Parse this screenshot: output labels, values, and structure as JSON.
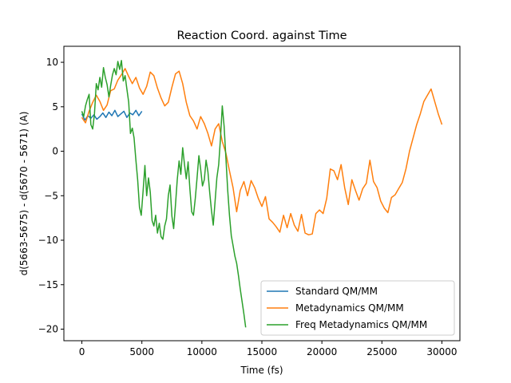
{
  "chart_data": {
    "type": "line",
    "title": "Reaction Coord. against Time",
    "xlabel": "Time (fs)",
    "ylabel": "d(5663-5675) - d(5670 - 5671) (A)",
    "xlim": [
      -1500,
      31500
    ],
    "ylim": [
      -21.3,
      11.8
    ],
    "xticks": [
      0,
      5000,
      10000,
      15000,
      20000,
      25000,
      30000
    ],
    "yticks": [
      -20,
      -15,
      -10,
      -5,
      0,
      5,
      10
    ],
    "grid": false,
    "legend": "lower-right",
    "series": [
      {
        "name": "Standard QM/MM",
        "color": "#1f77b4",
        "x": [
          0,
          250,
          500,
          750,
          1000,
          1250,
          1500,
          1750,
          2000,
          2250,
          2500,
          2750,
          3000,
          3250,
          3500,
          3750,
          4000,
          4250,
          4500,
          4750,
          5000
        ],
        "y": [
          4.2,
          3.5,
          4.0,
          3.7,
          4.1,
          3.6,
          3.9,
          4.3,
          3.8,
          4.4,
          4.0,
          4.6,
          3.9,
          4.2,
          4.5,
          3.8,
          4.3,
          4.1,
          4.6,
          4.0,
          4.5
        ]
      },
      {
        "name": "Metadynamics QM/MM",
        "color": "#ff7f0e",
        "x": [
          0,
          300,
          600,
          900,
          1200,
          1500,
          1800,
          2100,
          2400,
          2700,
          3000,
          3300,
          3600,
          3900,
          4200,
          4500,
          4800,
          5100,
          5400,
          5700,
          6000,
          6300,
          6600,
          6900,
          7200,
          7500,
          7800,
          8100,
          8400,
          8700,
          9000,
          9300,
          9600,
          9900,
          10200,
          10500,
          10800,
          11100,
          11400,
          11700,
          12000,
          12300,
          12600,
          12900,
          13200,
          13500,
          13800,
          14100,
          14400,
          14700,
          15000,
          15300,
          15600,
          15900,
          16200,
          16500,
          16800,
          17100,
          17400,
          17700,
          18000,
          18300,
          18600,
          18900,
          19200,
          19500,
          19800,
          20100,
          20400,
          20700,
          21000,
          21300,
          21600,
          21900,
          22200,
          22500,
          22800,
          23100,
          23400,
          23700,
          24000,
          24300,
          24600,
          24900,
          25200,
          25500,
          25800,
          26100,
          26400,
          26700,
          27000,
          27300,
          27600,
          27900,
          28200,
          28500,
          28800,
          29100,
          29400,
          29700,
          30000
        ],
        "y": [
          3.8,
          3.2,
          4.5,
          5.5,
          6.3,
          5.6,
          4.6,
          5.2,
          6.8,
          7.0,
          8.0,
          8.6,
          9.3,
          8.4,
          7.6,
          8.3,
          7.1,
          6.4,
          7.3,
          8.9,
          8.5,
          7.1,
          6.0,
          5.1,
          5.5,
          7.2,
          8.7,
          9.0,
          7.6,
          5.5,
          4.0,
          3.4,
          2.5,
          3.9,
          3.1,
          2.0,
          0.6,
          2.5,
          3.1,
          1.1,
          -0.2,
          -2.2,
          -4.1,
          -6.8,
          -4.4,
          -3.4,
          -5.0,
          -3.3,
          -4.1,
          -5.3,
          -6.2,
          -5.1,
          -7.6,
          -8.0,
          -8.5,
          -9.1,
          -7.2,
          -8.6,
          -7.0,
          -8.3,
          -9.0,
          -7.1,
          -9.2,
          -9.4,
          -9.3,
          -7.0,
          -6.6,
          -7.0,
          -5.3,
          -2.0,
          -2.2,
          -3.2,
          -1.5,
          -4.1,
          -6.0,
          -3.2,
          -4.4,
          -5.5,
          -4.2,
          -3.6,
          -1.0,
          -3.4,
          -4.1,
          -5.6,
          -6.4,
          -6.9,
          -5.2,
          -4.9,
          -4.2,
          -3.5,
          -2.0,
          0.0,
          1.5,
          3.0,
          4.2,
          5.6,
          6.3,
          7.0,
          5.6,
          4.2,
          3.0
        ]
      },
      {
        "name": "Freq Metadynamics QM/MM",
        "color": "#2ca02c",
        "x": [
          0,
          150,
          300,
          450,
          600,
          750,
          900,
          1050,
          1200,
          1350,
          1500,
          1650,
          1800,
          1950,
          2100,
          2250,
          2400,
          2550,
          2700,
          2850,
          3000,
          3150,
          3300,
          3450,
          3600,
          3750,
          3900,
          4050,
          4200,
          4350,
          4500,
          4650,
          4800,
          4950,
          5100,
          5250,
          5400,
          5550,
          5700,
          5850,
          6000,
          6150,
          6300,
          6450,
          6600,
          6750,
          6900,
          7050,
          7200,
          7350,
          7500,
          7650,
          7800,
          7950,
          8100,
          8250,
          8400,
          8550,
          8700,
          8850,
          9000,
          9150,
          9300,
          9450,
          9600,
          9750,
          9900,
          10050,
          10200,
          10350,
          10500,
          10650,
          10800,
          10950,
          11100,
          11250,
          11400,
          11550,
          11700,
          11850,
          12000,
          12150,
          12300,
          12450,
          12600,
          12750,
          12900,
          13050,
          13200,
          13350,
          13500,
          13650
        ],
        "y": [
          4.5,
          3.9,
          5.1,
          5.8,
          6.4,
          3.0,
          2.5,
          4.2,
          7.6,
          6.9,
          8.3,
          7.2,
          9.4,
          8.3,
          7.5,
          6.1,
          7.4,
          8.6,
          9.3,
          8.6,
          10.1,
          9.2,
          10.2,
          7.9,
          8.5,
          7.0,
          5.5,
          2.0,
          2.6,
          1.5,
          -1.0,
          -3.2,
          -6.3,
          -7.2,
          -4.5,
          -1.6,
          -5.0,
          -3.0,
          -4.6,
          -7.8,
          -8.4,
          -7.2,
          -9.2,
          -8.1,
          -9.6,
          -9.9,
          -8.4,
          -7.6,
          -5.0,
          -3.8,
          -7.3,
          -8.7,
          -6.0,
          -3.2,
          -1.1,
          -2.6,
          0.4,
          -1.5,
          -3.1,
          -1.2,
          -4.2,
          -6.8,
          -7.2,
          -5.3,
          -3.0,
          -0.5,
          -2.0,
          -3.9,
          -3.2,
          -1.0,
          -2.3,
          -4.6,
          -6.7,
          -8.3,
          -5.6,
          -3.0,
          -1.5,
          1.4,
          5.1,
          2.8,
          -0.7,
          -4.4,
          -7.2,
          -9.5,
          -10.6,
          -11.8,
          -12.6,
          -14.0,
          -15.5,
          -16.9,
          -18.3,
          -19.8
        ]
      }
    ]
  }
}
